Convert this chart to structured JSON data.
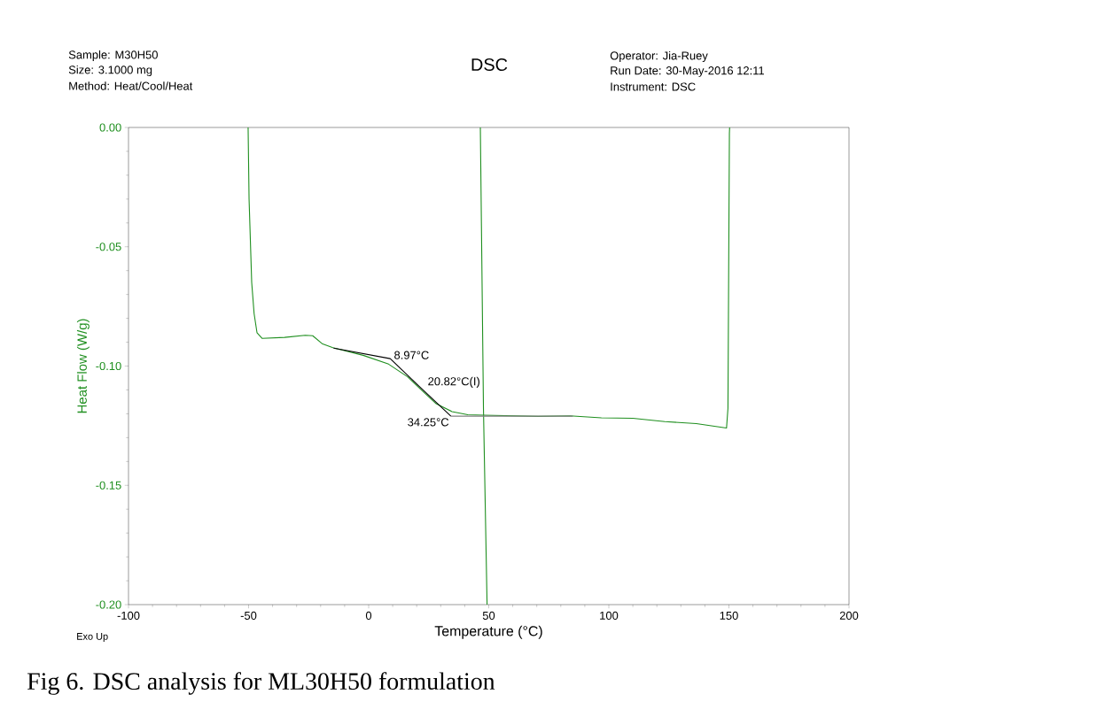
{
  "chart_data": {
    "type": "line",
    "title": "DSC",
    "xlabel": "Temperature (°C)",
    "ylabel": "Heat Flow (W/g)",
    "xlim": [
      -100,
      200
    ],
    "ylim": [
      -0.2,
      0
    ],
    "xticks": [
      -100,
      -50,
      0,
      50,
      100,
      150,
      200
    ],
    "yticks": [
      {
        "value": 0,
        "label": "0.00"
      },
      -0.05,
      {
        "value": -0.1,
        "label": "-0.10"
      },
      -0.15,
      {
        "value": -0.2,
        "label": "-0.20"
      }
    ],
    "series": [
      {
        "color": "#1f8f1f",
        "x": [
          -50.2,
          -49.8,
          -48.7,
          -47.7,
          -46.5,
          -44.4,
          -35,
          -26.4,
          -23.3,
          -19.4,
          -14.9,
          -2.3,
          8.3,
          16.2,
          21.5,
          28.1,
          34.7,
          41.3,
          47.8,
          70.5,
          83.8,
          96.9,
          110,
          123.3,
          136.4,
          149,
          149.6,
          150.2,
          150.3
        ],
        "values": [
          0,
          -0.03,
          -0.065,
          -0.078,
          -0.086,
          -0.0884,
          -0.088,
          -0.0871,
          -0.0873,
          -0.0906,
          -0.0923,
          -0.0955,
          -0.0992,
          -0.1045,
          -0.1096,
          -0.1158,
          -0.1191,
          -0.1204,
          -0.1206,
          -0.1211,
          -0.1209,
          -0.1217,
          -0.1219,
          -0.1233,
          -0.1241,
          -0.126,
          -0.1177,
          -0.0025,
          0
        ]
      },
      {
        "color": "#1f8f1f",
        "x": [
          46.5,
          47.8,
          49.3
        ],
        "values": [
          0,
          -0.118,
          -0.2
        ]
      },
      {
        "color": "#000000",
        "x": [
          -14.6,
          8.97,
          20.82,
          34.25
        ],
        "values": [
          -0.0925,
          -0.0969,
          -0.1083,
          -0.121
        ]
      },
      {
        "color": "#808080",
        "x": [
          34.25,
          85
        ],
        "values": [
          -0.121,
          -0.121
        ]
      }
    ],
    "annotations": [
      "Sample: M30H50",
      "Size:  3.1000 mg",
      "Method: Heat/Cool/Heat",
      "Operator: Jia-Ruey",
      "Run Date: 30-May-2016 12:11",
      "Instrument: DSC",
      "Exo Up",
      "Fig 6. DSC analysis for ML30H50 formulation",
      {
        "text": "8.97°C",
        "x": 8.97,
        "y": -0.0969
      },
      {
        "text": "20.82°C(I)",
        "x": 20.82,
        "y": -0.1083
      },
      {
        "text": "34.25°C",
        "x": 34.25,
        "y": -0.121
      }
    ]
  }
}
